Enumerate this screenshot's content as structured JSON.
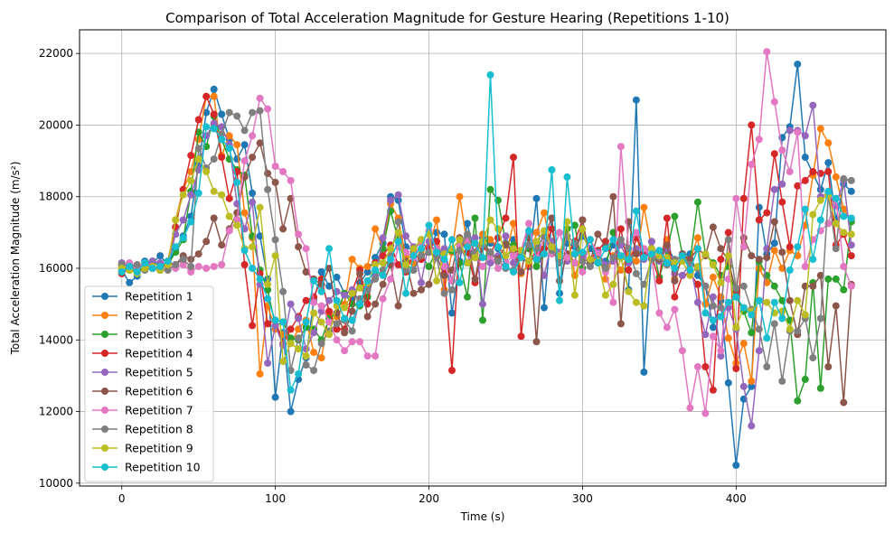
{
  "chart_data": {
    "type": "line",
    "title": "Comparison of Total Acceleration Magnitude for Gesture Hearing (Repetitions 1-10)",
    "xlabel": "Time (s)",
    "ylabel": "Total Acceleration Magnitude (m/s²)",
    "xlim": [
      -27.5,
      497.5
    ],
    "ylim": [
      9920,
      22660
    ],
    "xticks": [
      0,
      100,
      200,
      300,
      400
    ],
    "yticks": [
      10000,
      12000,
      14000,
      16000,
      18000,
      20000,
      22000
    ],
    "grid": true,
    "legend_position": "lower-left",
    "x": [
      0,
      5,
      10,
      15,
      20,
      25,
      30,
      35,
      40,
      45,
      50,
      55,
      60,
      65,
      70,
      75,
      80,
      85,
      90,
      95,
      100,
      105,
      110,
      115,
      120,
      125,
      130,
      135,
      140,
      145,
      150,
      155,
      160,
      165,
      170,
      175,
      180,
      185,
      190,
      195,
      200,
      205,
      210,
      215,
      220,
      225,
      230,
      235,
      240,
      245,
      250,
      255,
      260,
      265,
      270,
      275,
      280,
      285,
      290,
      295,
      300,
      305,
      310,
      315,
      320,
      325,
      330,
      335,
      340,
      345,
      350,
      355,
      360,
      365,
      370,
      375,
      380,
      385,
      390,
      395,
      400,
      405,
      410,
      415,
      420,
      425,
      430,
      435,
      440,
      445,
      450,
      455,
      460,
      465,
      470,
      475
    ],
    "series": [
      {
        "name": "Repetition 1",
        "color": "#1f77b4",
        "values": [
          15950,
          15600,
          15780,
          16200,
          16150,
          16350,
          16100,
          16550,
          16900,
          17450,
          18900,
          20350,
          21000,
          20300,
          19600,
          19050,
          19450,
          18100,
          16900,
          15700,
          12400,
          14200,
          12000,
          12900,
          13500,
          15100,
          15900,
          15500,
          15750,
          15300,
          15150,
          15600,
          15900,
          16300,
          16700,
          18000,
          17900,
          16600,
          16500,
          16800,
          16450,
          17000,
          16950,
          14750,
          16200,
          17250,
          16300,
          16850,
          16700,
          16550,
          16150,
          16800,
          16400,
          16050,
          17950,
          14900,
          17400,
          15300,
          16700,
          16600,
          16900,
          16550,
          16250,
          16200,
          16650,
          16300,
          15400,
          20700,
          13100,
          16550,
          16400,
          16650,
          16200,
          16350,
          16400,
          15800,
          15500,
          14350,
          15100,
          12800,
          10500,
          12350,
          12700,
          17700,
          16400,
          16700,
          19650,
          19950,
          21700,
          19100,
          18650,
          18200,
          18950,
          17350,
          18350,
          18150
        ]
      },
      {
        "name": "Repetition 2",
        "color": "#ff7f0e",
        "values": [
          15900,
          16100,
          16000,
          16150,
          16000,
          16050,
          16150,
          17350,
          18200,
          18700,
          19600,
          20800,
          20800,
          19150,
          19700,
          19450,
          17550,
          16850,
          13050,
          14950,
          14300,
          14150,
          13900,
          14300,
          14550,
          13650,
          13500,
          14750,
          14650,
          15000,
          16250,
          16000,
          16050,
          17100,
          16550,
          17800,
          17400,
          16300,
          16150,
          16500,
          16600,
          17350,
          15400,
          16450,
          18000,
          16650,
          16400,
          16950,
          16800,
          16600,
          16350,
          17250,
          15850,
          16100,
          17000,
          17550,
          16450,
          16250,
          17100,
          15800,
          16350,
          16150,
          16450,
          15700,
          16350,
          15950,
          16400,
          16200,
          17700,
          16550,
          16350,
          16800,
          15700,
          16300,
          16250,
          16850,
          15000,
          15750,
          15200,
          14050,
          13350,
          13900,
          12850,
          16000,
          15600,
          16500,
          16000,
          16500,
          16350,
          17200,
          18600,
          19900,
          19500,
          18550,
          17650,
          17350
        ]
      },
      {
        "name": "Repetition 3",
        "color": "#2ca02c",
        "values": [
          16050,
          15950,
          15900,
          16050,
          16200,
          16050,
          16100,
          16450,
          16800,
          18150,
          19800,
          19400,
          20250,
          19600,
          19050,
          18750,
          18600,
          16900,
          15950,
          15400,
          14400,
          14500,
          14050,
          14000,
          14350,
          14300,
          14000,
          14600,
          14750,
          15300,
          15000,
          14950,
          15200,
          15900,
          16550,
          17600,
          16800,
          16100,
          15950,
          16350,
          16050,
          16500,
          16400,
          16500,
          16150,
          15200,
          17400,
          14550,
          18200,
          17900,
          16700,
          16650,
          16400,
          16550,
          16050,
          16400,
          16750,
          16350,
          17100,
          17200,
          16000,
          16800,
          16150,
          16000,
          17000,
          16300,
          16200,
          16450,
          16300,
          16750,
          15750,
          16500,
          17450,
          16400,
          16200,
          17850,
          16400,
          16150,
          15800,
          16050,
          15200,
          14800,
          14200,
          16200,
          15800,
          15500,
          15100,
          14550,
          12300,
          12900,
          15600,
          12650,
          15700,
          15700,
          15400,
          17300
        ]
      },
      {
        "name": "Repetition 4",
        "color": "#d62728",
        "values": [
          15850,
          16000,
          15950,
          16100,
          16000,
          15950,
          16200,
          17150,
          18200,
          19150,
          20150,
          20800,
          20300,
          19100,
          17950,
          18700,
          16100,
          14400,
          15850,
          14450,
          14550,
          13900,
          14300,
          14650,
          15100,
          15200,
          15700,
          14800,
          14300,
          14300,
          15350,
          15950,
          15000,
          16150,
          16350,
          16650,
          16100,
          15900,
          16400,
          16250,
          16550,
          16750,
          15850,
          13150,
          16850,
          16450,
          15600,
          16600,
          16400,
          16850,
          17400,
          19100,
          14100,
          16200,
          16350,
          16550,
          17100,
          16200,
          16350,
          16750,
          17350,
          16250,
          16500,
          16750,
          16200,
          17100,
          15950,
          16850,
          16400,
          16350,
          15650,
          17400,
          15200,
          15800,
          15850,
          15550,
          13250,
          12600,
          16250,
          17000,
          13200,
          17950,
          20000,
          17350,
          17550,
          19200,
          17850,
          16600,
          18300,
          18450,
          18700,
          18650,
          18700,
          16650,
          16950,
          16350
        ]
      },
      {
        "name": "Repetition 5",
        "color": "#9467bd",
        "values": [
          16150,
          16100,
          16050,
          16050,
          16200,
          16150,
          16100,
          16950,
          17350,
          18050,
          18750,
          19700,
          20050,
          19950,
          19450,
          17800,
          17100,
          17850,
          15550,
          13350,
          14400,
          13850,
          15000,
          14600,
          13750,
          14200,
          14800,
          15100,
          15350,
          15250,
          15400,
          15050,
          15450,
          15750,
          16850,
          17900,
          18050,
          16900,
          16600,
          15600,
          16750,
          16400,
          16550,
          15650,
          16650,
          16150,
          16850,
          15000,
          16150,
          16350,
          16900,
          16150,
          16500,
          16950,
          16650,
          15800,
          16750,
          16450,
          16200,
          16400,
          16300,
          16150,
          16450,
          16100,
          16200,
          16650,
          16150,
          16550,
          16250,
          16750,
          16200,
          16550,
          15850,
          15800,
          16150,
          15050,
          14150,
          15200,
          13550,
          14900,
          14300,
          12700,
          11600,
          13700,
          16550,
          18200,
          18350,
          19850,
          19850,
          19700,
          20550,
          18000,
          18100,
          17750,
          18450,
          16650
        ]
      },
      {
        "name": "Repetition 6",
        "color": "#8c564b",
        "values": [
          15900,
          15950,
          16050,
          16050,
          16000,
          15950,
          16150,
          16100,
          16350,
          16250,
          16400,
          16750,
          17400,
          16650,
          17100,
          17550,
          18550,
          19100,
          19500,
          18650,
          18400,
          17100,
          17950,
          16600,
          15900,
          15700,
          15550,
          16000,
          14750,
          14200,
          14800,
          15850,
          14650,
          15000,
          15550,
          16100,
          14950,
          16200,
          15300,
          15400,
          15550,
          16350,
          15800,
          15950,
          16850,
          16800,
          15700,
          16750,
          16450,
          16250,
          16650,
          16500,
          15900,
          16850,
          13950,
          16900,
          17400,
          15650,
          16400,
          16150,
          17350,
          16200,
          16950,
          16600,
          18000,
          14450,
          17300,
          16400,
          16300,
          16400,
          16250,
          16650,
          15650,
          16400,
          16250,
          16550,
          16350,
          17150,
          16550,
          16200,
          15350,
          16850,
          16350,
          16250,
          16300,
          17300,
          16450,
          15100,
          14150,
          15500,
          15500,
          15800,
          13250,
          14950,
          12250,
          15550
        ]
      },
      {
        "name": "Repetition 7",
        "color": "#e377c2",
        "values": [
          16100,
          16150,
          16050,
          16100,
          16000,
          15950,
          16050,
          16000,
          16100,
          15900,
          16050,
          16000,
          16050,
          16100,
          17050,
          17350,
          19000,
          19700,
          20750,
          20450,
          18850,
          18700,
          18450,
          16950,
          16550,
          15050,
          14950,
          14500,
          14000,
          13700,
          13950,
          13950,
          13550,
          13550,
          15150,
          15700,
          16600,
          16450,
          16300,
          16700,
          17050,
          16550,
          16050,
          15650,
          16650,
          16800,
          16350,
          16050,
          16350,
          16000,
          16150,
          16350,
          16500,
          17250,
          16300,
          16850,
          16400,
          17000,
          16300,
          16150,
          15900,
          16800,
          16400,
          15900,
          15050,
          19400,
          16550,
          17000,
          16550,
          16300,
          14750,
          14350,
          14850,
          13700,
          12100,
          13250,
          11950,
          14100,
          13700,
          15700,
          17950,
          16600,
          18900,
          19600,
          22050,
          20650,
          19300,
          18700,
          19800,
          16050,
          16800,
          17050,
          17250,
          17950,
          16050,
          15500
        ]
      },
      {
        "name": "Repetition 8",
        "color": "#7f7f7f",
        "values": [
          16100,
          16050,
          16100,
          15950,
          16000,
          15950,
          15950,
          16100,
          16250,
          16050,
          19350,
          18800,
          19050,
          19750,
          20350,
          20250,
          19850,
          20350,
          20400,
          18200,
          16800,
          15350,
          13150,
          14050,
          13300,
          13150,
          13900,
          14250,
          14450,
          14550,
          14250,
          15150,
          15400,
          15700,
          15950,
          16350,
          17300,
          15950,
          15950,
          16350,
          16450,
          16300,
          15300,
          15400,
          16500,
          16950,
          16450,
          16650,
          16450,
          16200,
          16000,
          15950,
          16300,
          16650,
          16550,
          16900,
          16500,
          16150,
          16900,
          16700,
          16200,
          16050,
          16250,
          16000,
          16300,
          16800,
          16550,
          15850,
          15550,
          16250,
          16300,
          16100,
          16250,
          16350,
          16100,
          16000,
          15500,
          14950,
          14900,
          16800,
          15450,
          15500,
          14850,
          14300,
          13250,
          14450,
          12850,
          14250,
          14250,
          14600,
          13500,
          14600,
          18050,
          16550,
          18500,
          18450
        ]
      },
      {
        "name": "Repetition 9",
        "color": "#bcbd22",
        "values": [
          16000,
          15950,
          15850,
          16000,
          16050,
          15950,
          16100,
          17350,
          18050,
          18450,
          19050,
          18700,
          18150,
          18050,
          17450,
          17200,
          16550,
          16600,
          17700,
          15550,
          16350,
          13400,
          13900,
          13750,
          13550,
          14750,
          14500,
          14150,
          14950,
          14900,
          15300,
          15450,
          15600,
          16100,
          16150,
          16550,
          17000,
          16100,
          16550,
          16800,
          16950,
          15650,
          16400,
          16550,
          16800,
          16150,
          16300,
          16750,
          17350,
          17100,
          16350,
          16550,
          16500,
          16200,
          16750,
          17050,
          16600,
          16350,
          17300,
          15250,
          17100,
          16250,
          16200,
          15250,
          15550,
          16300,
          15350,
          15050,
          14950,
          16550,
          16350,
          16300,
          16150,
          16200,
          15800,
          16050,
          16400,
          16100,
          15600,
          16350,
          14350,
          14900,
          14800,
          15100,
          15050,
          14750,
          14800,
          14300,
          15100,
          14700,
          17500,
          17900,
          18050,
          17250,
          17000,
          16950
        ]
      },
      {
        "name": "Repetition 10",
        "color": "#17becf",
        "values": [
          15900,
          16050,
          15900,
          16150,
          16000,
          16050,
          16200,
          16600,
          16850,
          17300,
          18100,
          19950,
          19900,
          19600,
          19350,
          18400,
          16500,
          16000,
          15700,
          15150,
          14550,
          14500,
          12600,
          13050,
          14500,
          15650,
          15350,
          16550,
          15100,
          14600,
          14550,
          15000,
          15650,
          15950,
          15800,
          16250,
          16750,
          15300,
          16350,
          16550,
          17200,
          16450,
          16250,
          16800,
          15600,
          16600,
          16700,
          16300,
          21400,
          16600,
          16050,
          15900,
          16300,
          17050,
          16250,
          16400,
          18750,
          15100,
          18550,
          16400,
          16450,
          16800,
          16150,
          16550,
          16800,
          16350,
          16250,
          17600,
          16300,
          16400,
          16500,
          16150,
          16000,
          16350,
          15950,
          16550,
          14750,
          14550,
          14650,
          15050,
          15200,
          14900,
          14700,
          15100,
          14050,
          15050,
          14600,
          15950,
          16600,
          17650,
          16250,
          17350,
          18150,
          17950,
          17450,
          17400
        ]
      }
    ]
  }
}
